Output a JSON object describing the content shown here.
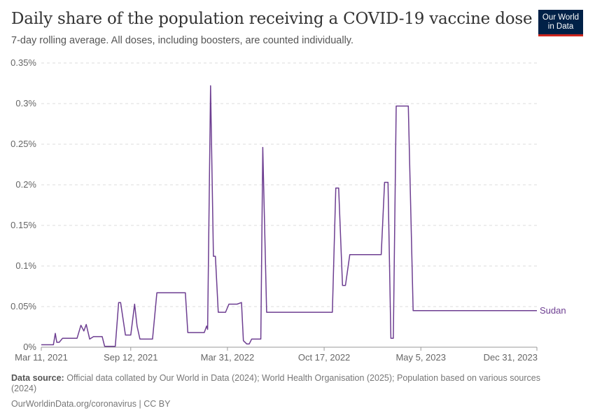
{
  "header": {
    "title": "Daily share of the population receiving a COVID-19 vaccine dose",
    "subtitle": "7-day rolling average. All doses, including boosters, are counted individually."
  },
  "logo": {
    "line1": "Our World",
    "line2": "in Data",
    "bg_color": "#002147",
    "accent_color": "#ce261e"
  },
  "footer": {
    "source_label": "Data source:",
    "source_text": "Official data collated by Our World in Data (2024); World Health Organisation (2025); Population based on various sources (2024)",
    "license": "OurWorldinData.org/coronavirus | CC BY"
  },
  "chart_data": {
    "type": "line",
    "title": "Daily share of the population receiving a COVID-19 vaccine dose",
    "subtitle": "7-day rolling average. All doses, including boosters, are counted individually.",
    "x_type": "date",
    "xlim": [
      "2021-03-11",
      "2023-12-31"
    ],
    "ylim": [
      0,
      0.35
    ],
    "y_ticks": [
      0,
      0.05,
      0.1,
      0.15,
      0.2,
      0.25,
      0.3,
      0.35
    ],
    "y_tick_labels": [
      "0%",
      "0.05%",
      "0.1%",
      "0.15%",
      "0.2%",
      "0.25%",
      "0.3%",
      "0.35%"
    ],
    "x_ticks": [
      "2021-03-11",
      "2021-09-12",
      "2022-03-31",
      "2022-10-17",
      "2023-05-05",
      "2023-12-31"
    ],
    "x_tick_labels": [
      "Mar 11, 2021",
      "Sep 12, 2021",
      "Mar 31, 2022",
      "Oct 17, 2022",
      "May 5, 2023",
      "Dec 31, 2023"
    ],
    "grid": true,
    "legend": "inline-right",
    "series": [
      {
        "name": "Sudan",
        "color": "#6d3e91",
        "points": [
          [
            "2021-03-11",
            0.003
          ],
          [
            "2021-04-05",
            0.003
          ],
          [
            "2021-04-09",
            0.017
          ],
          [
            "2021-04-12",
            0.006
          ],
          [
            "2021-04-17",
            0.006
          ],
          [
            "2021-04-24",
            0.011
          ],
          [
            "2021-05-24",
            0.011
          ],
          [
            "2021-06-01",
            0.027
          ],
          [
            "2021-06-07",
            0.02
          ],
          [
            "2021-06-12",
            0.028
          ],
          [
            "2021-06-19",
            0.01
          ],
          [
            "2021-06-27",
            0.013
          ],
          [
            "2021-07-15",
            0.013
          ],
          [
            "2021-07-20",
            0.001
          ],
          [
            "2021-08-11",
            0.001
          ],
          [
            "2021-08-18",
            0.055
          ],
          [
            "2021-08-22",
            0.055
          ],
          [
            "2021-09-01",
            0.015
          ],
          [
            "2021-09-12",
            0.015
          ],
          [
            "2021-09-20",
            0.053
          ],
          [
            "2021-09-25",
            0.026
          ],
          [
            "2021-10-01",
            0.01
          ],
          [
            "2021-10-27",
            0.01
          ],
          [
            "2021-11-05",
            0.067
          ],
          [
            "2022-01-03",
            0.067
          ],
          [
            "2022-01-08",
            0.018
          ],
          [
            "2022-02-11",
            0.018
          ],
          [
            "2022-02-16",
            0.026
          ],
          [
            "2022-02-18",
            0.022
          ],
          [
            "2022-02-24",
            0.322
          ],
          [
            "2022-03-02",
            0.112
          ],
          [
            "2022-03-06",
            0.112
          ],
          [
            "2022-03-12",
            0.043
          ],
          [
            "2022-03-27",
            0.043
          ],
          [
            "2022-04-03",
            0.053
          ],
          [
            "2022-04-20",
            0.053
          ],
          [
            "2022-04-29",
            0.055
          ],
          [
            "2022-05-03",
            0.008
          ],
          [
            "2022-05-10",
            0.004
          ],
          [
            "2022-05-15",
            0.004
          ],
          [
            "2022-05-20",
            0.01
          ],
          [
            "2022-06-08",
            0.01
          ],
          [
            "2022-06-12",
            0.246
          ],
          [
            "2022-06-20",
            0.043
          ],
          [
            "2022-11-03",
            0.043
          ],
          [
            "2022-11-10",
            0.196
          ],
          [
            "2022-11-16",
            0.196
          ],
          [
            "2022-11-24",
            0.076
          ],
          [
            "2022-11-30",
            0.076
          ],
          [
            "2022-12-09",
            0.114
          ],
          [
            "2023-02-12",
            0.114
          ],
          [
            "2023-02-19",
            0.203
          ],
          [
            "2023-02-26",
            0.203
          ],
          [
            "2023-03-04",
            0.011
          ],
          [
            "2023-03-09",
            0.011
          ],
          [
            "2023-03-15",
            0.297
          ],
          [
            "2023-04-09",
            0.297
          ],
          [
            "2023-04-19",
            0.045
          ],
          [
            "2023-12-31",
            0.045
          ]
        ]
      }
    ]
  }
}
